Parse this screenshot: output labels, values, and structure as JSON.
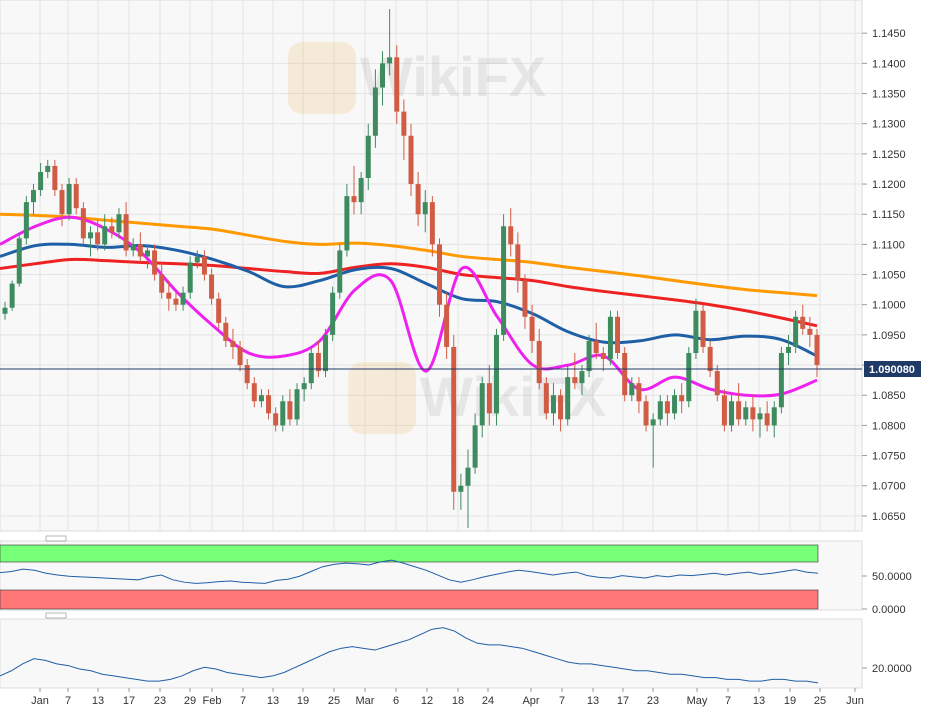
{
  "chart_data": [
    {
      "type": "candlestick",
      "yaxis": {
        "ticks": [
          "1.1450",
          "1.1400",
          "1.1350",
          "1.1300",
          "1.1250",
          "1.1200",
          "1.1150",
          "1.1100",
          "1.1050",
          "1.1000",
          "1.0950",
          "1.0900",
          "1.0850",
          "1.0800",
          "1.0750",
          "1.0700",
          "1.0650"
        ],
        "ylim": [
          1.0625,
          1.1505
        ]
      },
      "xaxis": {
        "tick_labels": [
          "Jan",
          "7",
          "13",
          "17",
          "23",
          "29",
          "Feb",
          "7",
          "13",
          "19",
          "25",
          "Mar",
          "6",
          "12",
          "18",
          "24",
          "Apr",
          "7",
          "13",
          "17",
          "23",
          "May",
          "7",
          "13",
          "19",
          "25",
          "Jun"
        ]
      },
      "current_price": {
        "value": 1.0901,
        "label": "1.090080"
      },
      "candles": [
        [
          1.0985,
          1.1005,
          1.0975,
          1.0995
        ],
        [
          1.0995,
          1.104,
          1.099,
          1.1035
        ],
        [
          1.1035,
          1.112,
          1.103,
          1.111
        ],
        [
          1.111,
          1.118,
          1.11,
          1.117
        ],
        [
          1.117,
          1.12,
          1.115,
          1.119
        ],
        [
          1.119,
          1.1235,
          1.118,
          1.122
        ],
        [
          1.122,
          1.124,
          1.121,
          1.123
        ],
        [
          1.123,
          1.124,
          1.118,
          1.119
        ],
        [
          1.119,
          1.12,
          1.113,
          1.115
        ],
        [
          1.115,
          1.121,
          1.114,
          1.12
        ],
        [
          1.12,
          1.121,
          1.115,
          1.116
        ],
        [
          1.116,
          1.117,
          1.11,
          1.111
        ],
        [
          1.111,
          1.113,
          1.108,
          1.112
        ],
        [
          1.112,
          1.114,
          1.109,
          1.11
        ],
        [
          1.11,
          1.115,
          1.109,
          1.113
        ],
        [
          1.113,
          1.1145,
          1.111,
          1.112
        ],
        [
          1.112,
          1.116,
          1.111,
          1.115
        ],
        [
          1.115,
          1.117,
          1.108,
          1.109
        ],
        [
          1.109,
          1.111,
          1.108,
          1.11
        ],
        [
          1.11,
          1.112,
          1.107,
          1.108
        ],
        [
          1.108,
          1.11,
          1.106,
          1.109
        ],
        [
          1.109,
          1.11,
          1.104,
          1.105
        ],
        [
          1.105,
          1.107,
          1.101,
          1.102
        ],
        [
          1.102,
          1.104,
          1.099,
          1.101
        ],
        [
          1.101,
          1.102,
          1.099,
          1.1
        ],
        [
          1.1,
          1.103,
          1.099,
          1.102
        ],
        [
          1.102,
          1.108,
          1.101,
          1.107
        ],
        [
          1.107,
          1.109,
          1.106,
          1.108
        ],
        [
          1.108,
          1.109,
          1.104,
          1.105
        ],
        [
          1.105,
          1.106,
          1.1,
          1.101
        ],
        [
          1.101,
          1.102,
          1.096,
          1.097
        ],
        [
          1.097,
          1.098,
          1.093,
          1.094
        ],
        [
          1.094,
          1.096,
          1.091,
          1.093
        ],
        [
          1.093,
          1.094,
          1.089,
          1.09
        ],
        [
          1.09,
          1.091,
          1.086,
          1.087
        ],
        [
          1.087,
          1.088,
          1.083,
          1.084
        ],
        [
          1.084,
          1.086,
          1.083,
          1.085
        ],
        [
          1.085,
          1.086,
          1.081,
          1.082
        ],
        [
          1.082,
          1.083,
          1.079,
          1.08
        ],
        [
          1.08,
          1.085,
          1.079,
          1.084
        ],
        [
          1.084,
          1.086,
          1.08,
          1.081
        ],
        [
          1.081,
          1.087,
          1.08,
          1.086
        ],
        [
          1.086,
          1.088,
          1.084,
          1.087
        ],
        [
          1.087,
          1.093,
          1.086,
          1.092
        ],
        [
          1.092,
          1.094,
          1.088,
          1.089
        ],
        [
          1.089,
          1.096,
          1.088,
          1.095
        ],
        [
          1.095,
          1.103,
          1.094,
          1.102
        ],
        [
          1.102,
          1.11,
          1.101,
          1.109
        ],
        [
          1.109,
          1.12,
          1.108,
          1.118
        ],
        [
          1.118,
          1.123,
          1.115,
          1.117
        ],
        [
          1.117,
          1.122,
          1.115,
          1.121
        ],
        [
          1.121,
          1.13,
          1.119,
          1.128
        ],
        [
          1.128,
          1.139,
          1.126,
          1.136
        ],
        [
          1.136,
          1.142,
          1.133,
          1.14
        ],
        [
          1.14,
          1.149,
          1.138,
          1.141
        ],
        [
          1.141,
          1.143,
          1.13,
          1.132
        ],
        [
          1.132,
          1.134,
          1.124,
          1.128
        ],
        [
          1.128,
          1.13,
          1.118,
          1.12
        ],
        [
          1.12,
          1.122,
          1.113,
          1.115
        ],
        [
          1.115,
          1.119,
          1.112,
          1.117
        ],
        [
          1.117,
          1.118,
          1.108,
          1.11
        ],
        [
          1.11,
          1.111,
          1.098,
          1.1
        ],
        [
          1.1,
          1.102,
          1.091,
          1.093
        ],
        [
          1.093,
          1.095,
          1.066,
          1.069
        ],
        [
          1.069,
          1.072,
          1.066,
          1.07
        ],
        [
          1.07,
          1.076,
          1.063,
          1.073
        ],
        [
          1.073,
          1.082,
          1.072,
          1.08
        ],
        [
          1.08,
          1.088,
          1.078,
          1.087
        ],
        [
          1.087,
          1.09,
          1.08,
          1.082
        ],
        [
          1.082,
          1.096,
          1.08,
          1.095
        ],
        [
          1.095,
          1.115,
          1.094,
          1.113
        ],
        [
          1.113,
          1.116,
          1.108,
          1.11
        ],
        [
          1.11,
          1.112,
          1.102,
          1.104
        ],
        [
          1.104,
          1.105,
          1.096,
          1.098
        ],
        [
          1.098,
          1.1,
          1.092,
          1.094
        ],
        [
          1.094,
          1.096,
          1.086,
          1.087
        ],
        [
          1.087,
          1.088,
          1.081,
          1.082
        ],
        [
          1.082,
          1.087,
          1.08,
          1.085
        ],
        [
          1.085,
          1.086,
          1.079,
          1.081
        ],
        [
          1.081,
          1.09,
          1.08,
          1.088
        ],
        [
          1.088,
          1.092,
          1.086,
          1.087
        ],
        [
          1.087,
          1.09,
          1.085,
          1.089
        ],
        [
          1.089,
          1.095,
          1.088,
          1.094
        ],
        [
          1.094,
          1.097,
          1.091,
          1.092
        ],
        [
          1.092,
          1.093,
          1.089,
          1.091
        ],
        [
          1.091,
          1.099,
          1.09,
          1.098
        ],
        [
          1.098,
          1.099,
          1.091,
          1.092
        ],
        [
          1.092,
          1.093,
          1.084,
          1.085
        ],
        [
          1.085,
          1.088,
          1.084,
          1.087
        ],
        [
          1.087,
          1.088,
          1.082,
          1.084
        ],
        [
          1.084,
          1.085,
          1.079,
          1.08
        ],
        [
          1.08,
          1.082,
          1.073,
          1.081
        ],
        [
          1.081,
          1.085,
          1.08,
          1.084
        ],
        [
          1.084,
          1.085,
          1.08,
          1.082
        ],
        [
          1.082,
          1.086,
          1.081,
          1.085
        ],
        [
          1.085,
          1.087,
          1.082,
          1.084
        ],
        [
          1.084,
          1.093,
          1.083,
          1.092
        ],
        [
          1.092,
          1.101,
          1.091,
          1.099
        ],
        [
          1.099,
          1.1,
          1.092,
          1.093
        ],
        [
          1.093,
          1.094,
          1.088,
          1.089
        ],
        [
          1.089,
          1.09,
          1.084,
          1.085
        ],
        [
          1.085,
          1.086,
          1.079,
          1.08
        ],
        [
          1.08,
          1.085,
          1.079,
          1.084
        ],
        [
          1.084,
          1.087,
          1.08,
          1.081
        ],
        [
          1.081,
          1.084,
          1.08,
          1.083
        ],
        [
          1.083,
          1.085,
          1.079,
          1.081
        ],
        [
          1.081,
          1.083,
          1.078,
          1.082
        ],
        [
          1.082,
          1.084,
          1.079,
          1.08
        ],
        [
          1.08,
          1.084,
          1.078,
          1.083
        ],
        [
          1.083,
          1.093,
          1.082,
          1.092
        ],
        [
          1.092,
          1.095,
          1.09,
          1.093
        ],
        [
          1.093,
          1.099,
          1.092,
          1.098
        ],
        [
          1.098,
          1.1,
          1.095,
          1.096
        ],
        [
          1.096,
          1.098,
          1.093,
          1.095
        ],
        [
          1.095,
          1.096,
          1.088,
          1.09
        ]
      ],
      "moving_averages": [
        {
          "color": "#ff9900",
          "values": [
            1.115,
            1.1148,
            1.1145,
            1.114,
            1.1135,
            1.113,
            1.1125,
            1.1115,
            1.1105,
            1.11,
            1.1102,
            1.1098,
            1.109,
            1.108,
            1.1075,
            1.107,
            1.1062,
            1.1055,
            1.1048,
            1.104,
            1.1032,
            1.1025,
            1.102,
            1.1015
          ]
        },
        {
          "color": "#ee2222",
          "values": [
            1.106,
            1.1068,
            1.1075,
            1.1073,
            1.107,
            1.1068,
            1.1065,
            1.106,
            1.1055,
            1.1052,
            1.1062,
            1.1068,
            1.1062,
            1.105,
            1.1045,
            1.104,
            1.103,
            1.1022,
            1.1015,
            1.1008,
            1.1,
            1.099,
            1.0978,
            1.0965
          ]
        },
        {
          "color": "#1f5fa6",
          "values": [
            1.108,
            1.1098,
            1.11,
            1.1095,
            1.1098,
            1.109,
            1.1075,
            1.1055,
            1.103,
            1.104,
            1.1058,
            1.106,
            1.1035,
            1.101,
            1.1005,
            1.0985,
            1.0955,
            1.0938,
            1.094,
            1.095,
            1.0942,
            1.0948,
            1.0942,
            1.0915
          ]
        },
        {
          "color": "#ee22ee",
          "values": [
            1.11,
            1.113,
            1.1145,
            1.1125,
            1.1085,
            1.102,
            1.0965,
            1.092,
            1.0915,
            1.094,
            1.1025,
            1.104,
            1.089,
            1.106,
            1.098,
            1.09,
            1.09,
            1.0915,
            1.086,
            1.088,
            1.086,
            1.085,
            1.0852,
            1.0875
          ]
        }
      ],
      "indicator_1": {
        "ticks": [
          "50.0000",
          "0.0000"
        ],
        "ylim": [
          0,
          100
        ],
        "bands": {
          "upper_color": "#77ff77",
          "lower_color": "#ff7777"
        },
        "line_color": "#1f5fa6",
        "values": [
          56,
          58,
          62,
          60,
          55,
          52,
          50,
          49,
          48,
          47,
          46,
          45,
          44,
          49,
          52,
          44,
          40,
          38,
          39,
          41,
          42,
          40,
          39,
          38,
          43,
          45,
          50,
          58,
          66,
          70,
          72,
          71,
          69,
          74,
          77,
          72,
          66,
          60,
          52,
          44,
          40,
          44,
          49,
          53,
          57,
          60,
          58,
          55,
          52,
          55,
          57,
          51,
          48,
          47,
          51,
          49,
          47,
          51,
          49,
          52,
          51,
          53,
          55,
          52,
          55,
          57,
          53,
          55,
          58,
          61,
          57,
          55
        ]
      },
      "indicator_2": {
        "ticks": [
          "20.0000"
        ],
        "ylim": [
          10,
          50
        ],
        "line_color": "#1f5fa6",
        "values": [
          17,
          20,
          24,
          27,
          26,
          24,
          23,
          21,
          20,
          18,
          17,
          16,
          15,
          14,
          14,
          15,
          17,
          20,
          22,
          21,
          19,
          18,
          17,
          16,
          17,
          19,
          22,
          25,
          28,
          31,
          33,
          34,
          33,
          32,
          34,
          36,
          38,
          41,
          44,
          45,
          43,
          39,
          36,
          35,
          35,
          34,
          33,
          31,
          29,
          27,
          25,
          24,
          24,
          23,
          22,
          21,
          20,
          20,
          19,
          18,
          18,
          17,
          16,
          16,
          15,
          15,
          14,
          14,
          15,
          15,
          14,
          14,
          13
        ]
      },
      "watermark_text": "WikiFX"
    }
  ]
}
